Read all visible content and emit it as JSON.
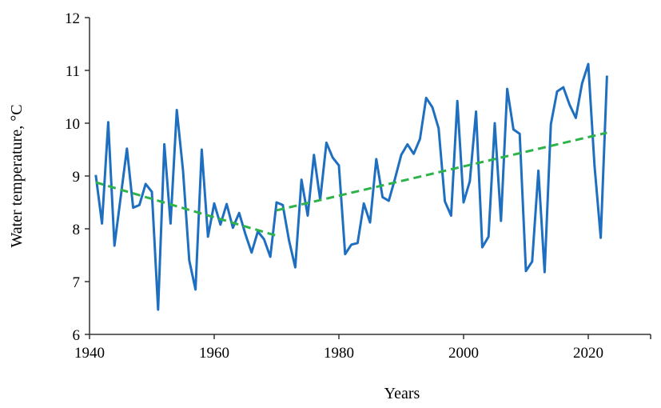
{
  "chart_data": {
    "type": "line",
    "title": "",
    "xlabel": "Years",
    "ylabel": "Water temperature,  °C",
    "xlim": [
      1940,
      2030
    ],
    "ylim": [
      6,
      12
    ],
    "xticks": [
      1940,
      1960,
      1980,
      2000,
      2020
    ],
    "yticks": [
      6,
      7,
      8,
      9,
      10,
      11,
      12
    ],
    "grid": false,
    "colors": {
      "series": "#1f6fc0",
      "trend": "#2db34a",
      "axis": "#333333"
    },
    "series": [
      {
        "name": "Water temperature",
        "x": [
          1941,
          1942,
          1943,
          1944,
          1945,
          1946,
          1947,
          1948,
          1949,
          1950,
          1951,
          1952,
          1953,
          1954,
          1955,
          1956,
          1957,
          1958,
          1959,
          1960,
          1961,
          1962,
          1963,
          1964,
          1965,
          1966,
          1967,
          1968,
          1969,
          1970,
          1971,
          1972,
          1973,
          1974,
          1975,
          1976,
          1977,
          1978,
          1979,
          1980,
          1981,
          1982,
          1983,
          1984,
          1985,
          1986,
          1987,
          1988,
          1989,
          1990,
          1991,
          1992,
          1993,
          1994,
          1995,
          1996,
          1997,
          1998,
          1999,
          2000,
          2001,
          2002,
          2003,
          2004,
          2005,
          2006,
          2007,
          2008,
          2009,
          2010,
          2011,
          2012,
          2013,
          2014,
          2015,
          2016,
          2017,
          2018,
          2019,
          2020,
          2021,
          2022,
          2023
        ],
        "values": [
          9.02,
          8.1,
          10.02,
          7.68,
          8.6,
          9.52,
          8.4,
          8.45,
          8.85,
          8.7,
          6.47,
          9.6,
          8.1,
          10.25,
          9.1,
          7.4,
          6.85,
          9.5,
          7.85,
          8.48,
          8.08,
          8.47,
          8.02,
          8.3,
          7.9,
          7.55,
          7.95,
          7.8,
          7.47,
          8.5,
          8.45,
          7.78,
          7.27,
          8.93,
          8.25,
          9.4,
          8.55,
          9.63,
          9.35,
          9.2,
          7.52,
          7.7,
          7.73,
          8.48,
          8.12,
          9.32,
          8.6,
          8.53,
          8.95,
          9.4,
          9.6,
          9.42,
          9.7,
          10.48,
          10.3,
          9.9,
          8.52,
          8.25,
          10.42,
          8.5,
          8.9,
          10.22,
          7.65,
          7.85,
          10.0,
          8.15,
          10.65,
          9.88,
          9.8,
          7.2,
          7.38,
          9.1,
          7.18,
          9.98,
          10.6,
          10.68,
          10.35,
          10.1,
          10.75,
          11.12,
          9.2,
          7.83,
          10.9
        ]
      },
      {
        "name": "Trend 1941-1970",
        "x": [
          1941,
          1970
        ],
        "values": [
          8.88,
          7.87
        ],
        "style": "dashed"
      },
      {
        "name": "Trend 1970-2023",
        "x": [
          1970,
          2023
        ],
        "values": [
          8.35,
          9.82
        ],
        "style": "dashed"
      }
    ]
  }
}
